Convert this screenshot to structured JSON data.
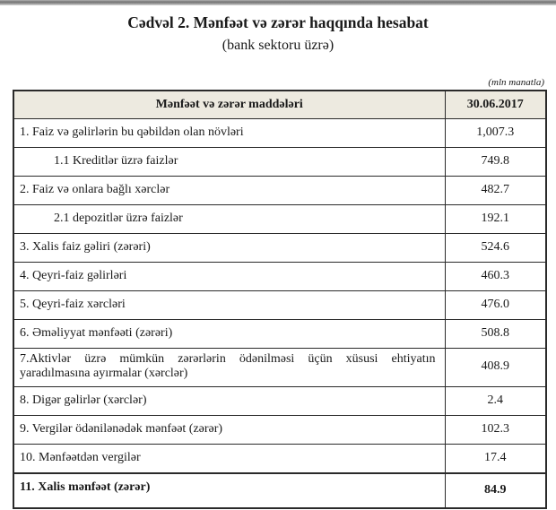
{
  "page": {
    "title": "Cədvəl 2. Mənfəət və zərər haqqında hesabat",
    "subtitle": "(bank sektoru üzrə)",
    "unit_note": "(mln manatla)"
  },
  "table": {
    "columns": [
      "Mənfəət və zərər maddələri",
      "30.06.2017"
    ],
    "rows": [
      {
        "label": "1. Faiz və gəlirlərin bu qəbildən olan növləri",
        "value": "1,007.3"
      },
      {
        "label": "1.1 Kreditlər üzrə faizlər",
        "value": "749.8",
        "indent": true
      },
      {
        "label": "2. Faiz və onlara bağlı xərclər",
        "value": "482.7"
      },
      {
        "label": "2.1 depozitlər üzrə faizlər",
        "value": "192.1",
        "indent": true
      },
      {
        "label": "3. Xalis faiz gəliri (zərəri)",
        "value": "524.6"
      },
      {
        "label": "4. Qeyri-faiz gəlirləri",
        "value": "460.3"
      },
      {
        "label": "5. Qeyri-faiz xərcləri",
        "value": "476.0"
      },
      {
        "label": "6. Əməliyyat mənfəəti (zərəri)",
        "value": "508.8"
      },
      {
        "label": "7.Aktivlər üzrə mümkün zərərlərin ödənilməsi üçün xüsusi ehtiyatın yaradılmasına ayırmalar (xərclər)",
        "value": "408.9",
        "justify": true
      },
      {
        "label": "8. Digər gəlirlər (xərclər)",
        "value": "2.4"
      },
      {
        "label": "9. Vergilər ödənilənədək mənfəət (zərər)",
        "value": "102.3"
      },
      {
        "label": "10. Mənfəətdən vergilər",
        "value": "17.4"
      },
      {
        "label": "11. Xalis mənfəət (zərər)",
        "value": "84.9",
        "total": true
      }
    ]
  },
  "colors": {
    "header_bg": "#edeae0",
    "border": "#2a2a2a",
    "text": "#1a1a1a",
    "page_bg": "#ffffff"
  }
}
